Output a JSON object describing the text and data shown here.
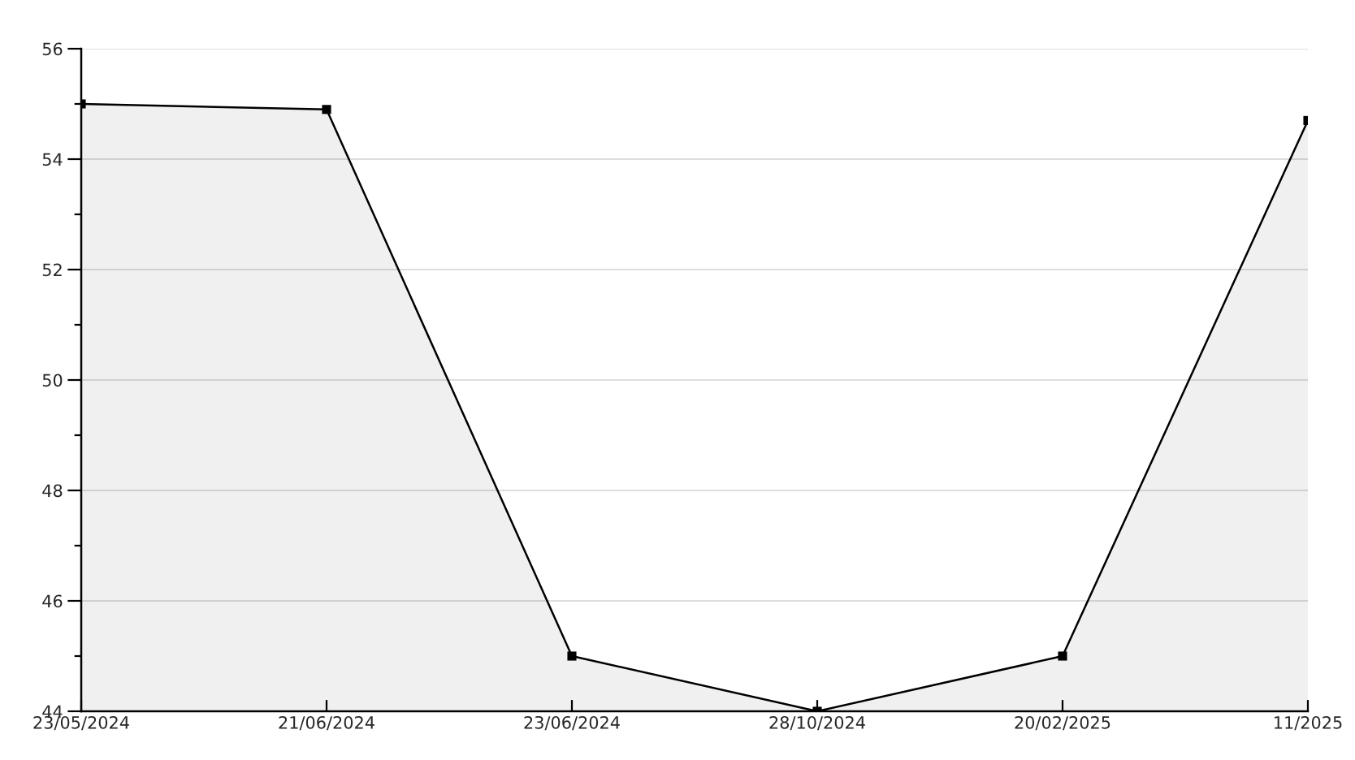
{
  "chart_data": {
    "type": "area",
    "categories": [
      "23/05/2024",
      "21/06/2024",
      "23/06/2024",
      "28/10/2024",
      "20/02/2025",
      "11/2025"
    ],
    "series": [
      {
        "color": "#000000",
        "values": [
          55,
          54.9,
          45,
          44,
          45,
          54.7
        ]
      }
    ],
    "ylim": [
      44,
      56
    ],
    "yticks": [
      44,
      {
        "value": 45,
        "label": null
      },
      46,
      {
        "value": 47,
        "label": null
      },
      48,
      {
        "value": 49,
        "label": null
      },
      50,
      {
        "value": 51,
        "label": null
      },
      52,
      {
        "value": 53,
        "label": null
      },
      54,
      {
        "value": 55,
        "label": null
      },
      56
    ],
    "grid": "y",
    "marker": "square",
    "line_style": "solid",
    "legend": false
  }
}
